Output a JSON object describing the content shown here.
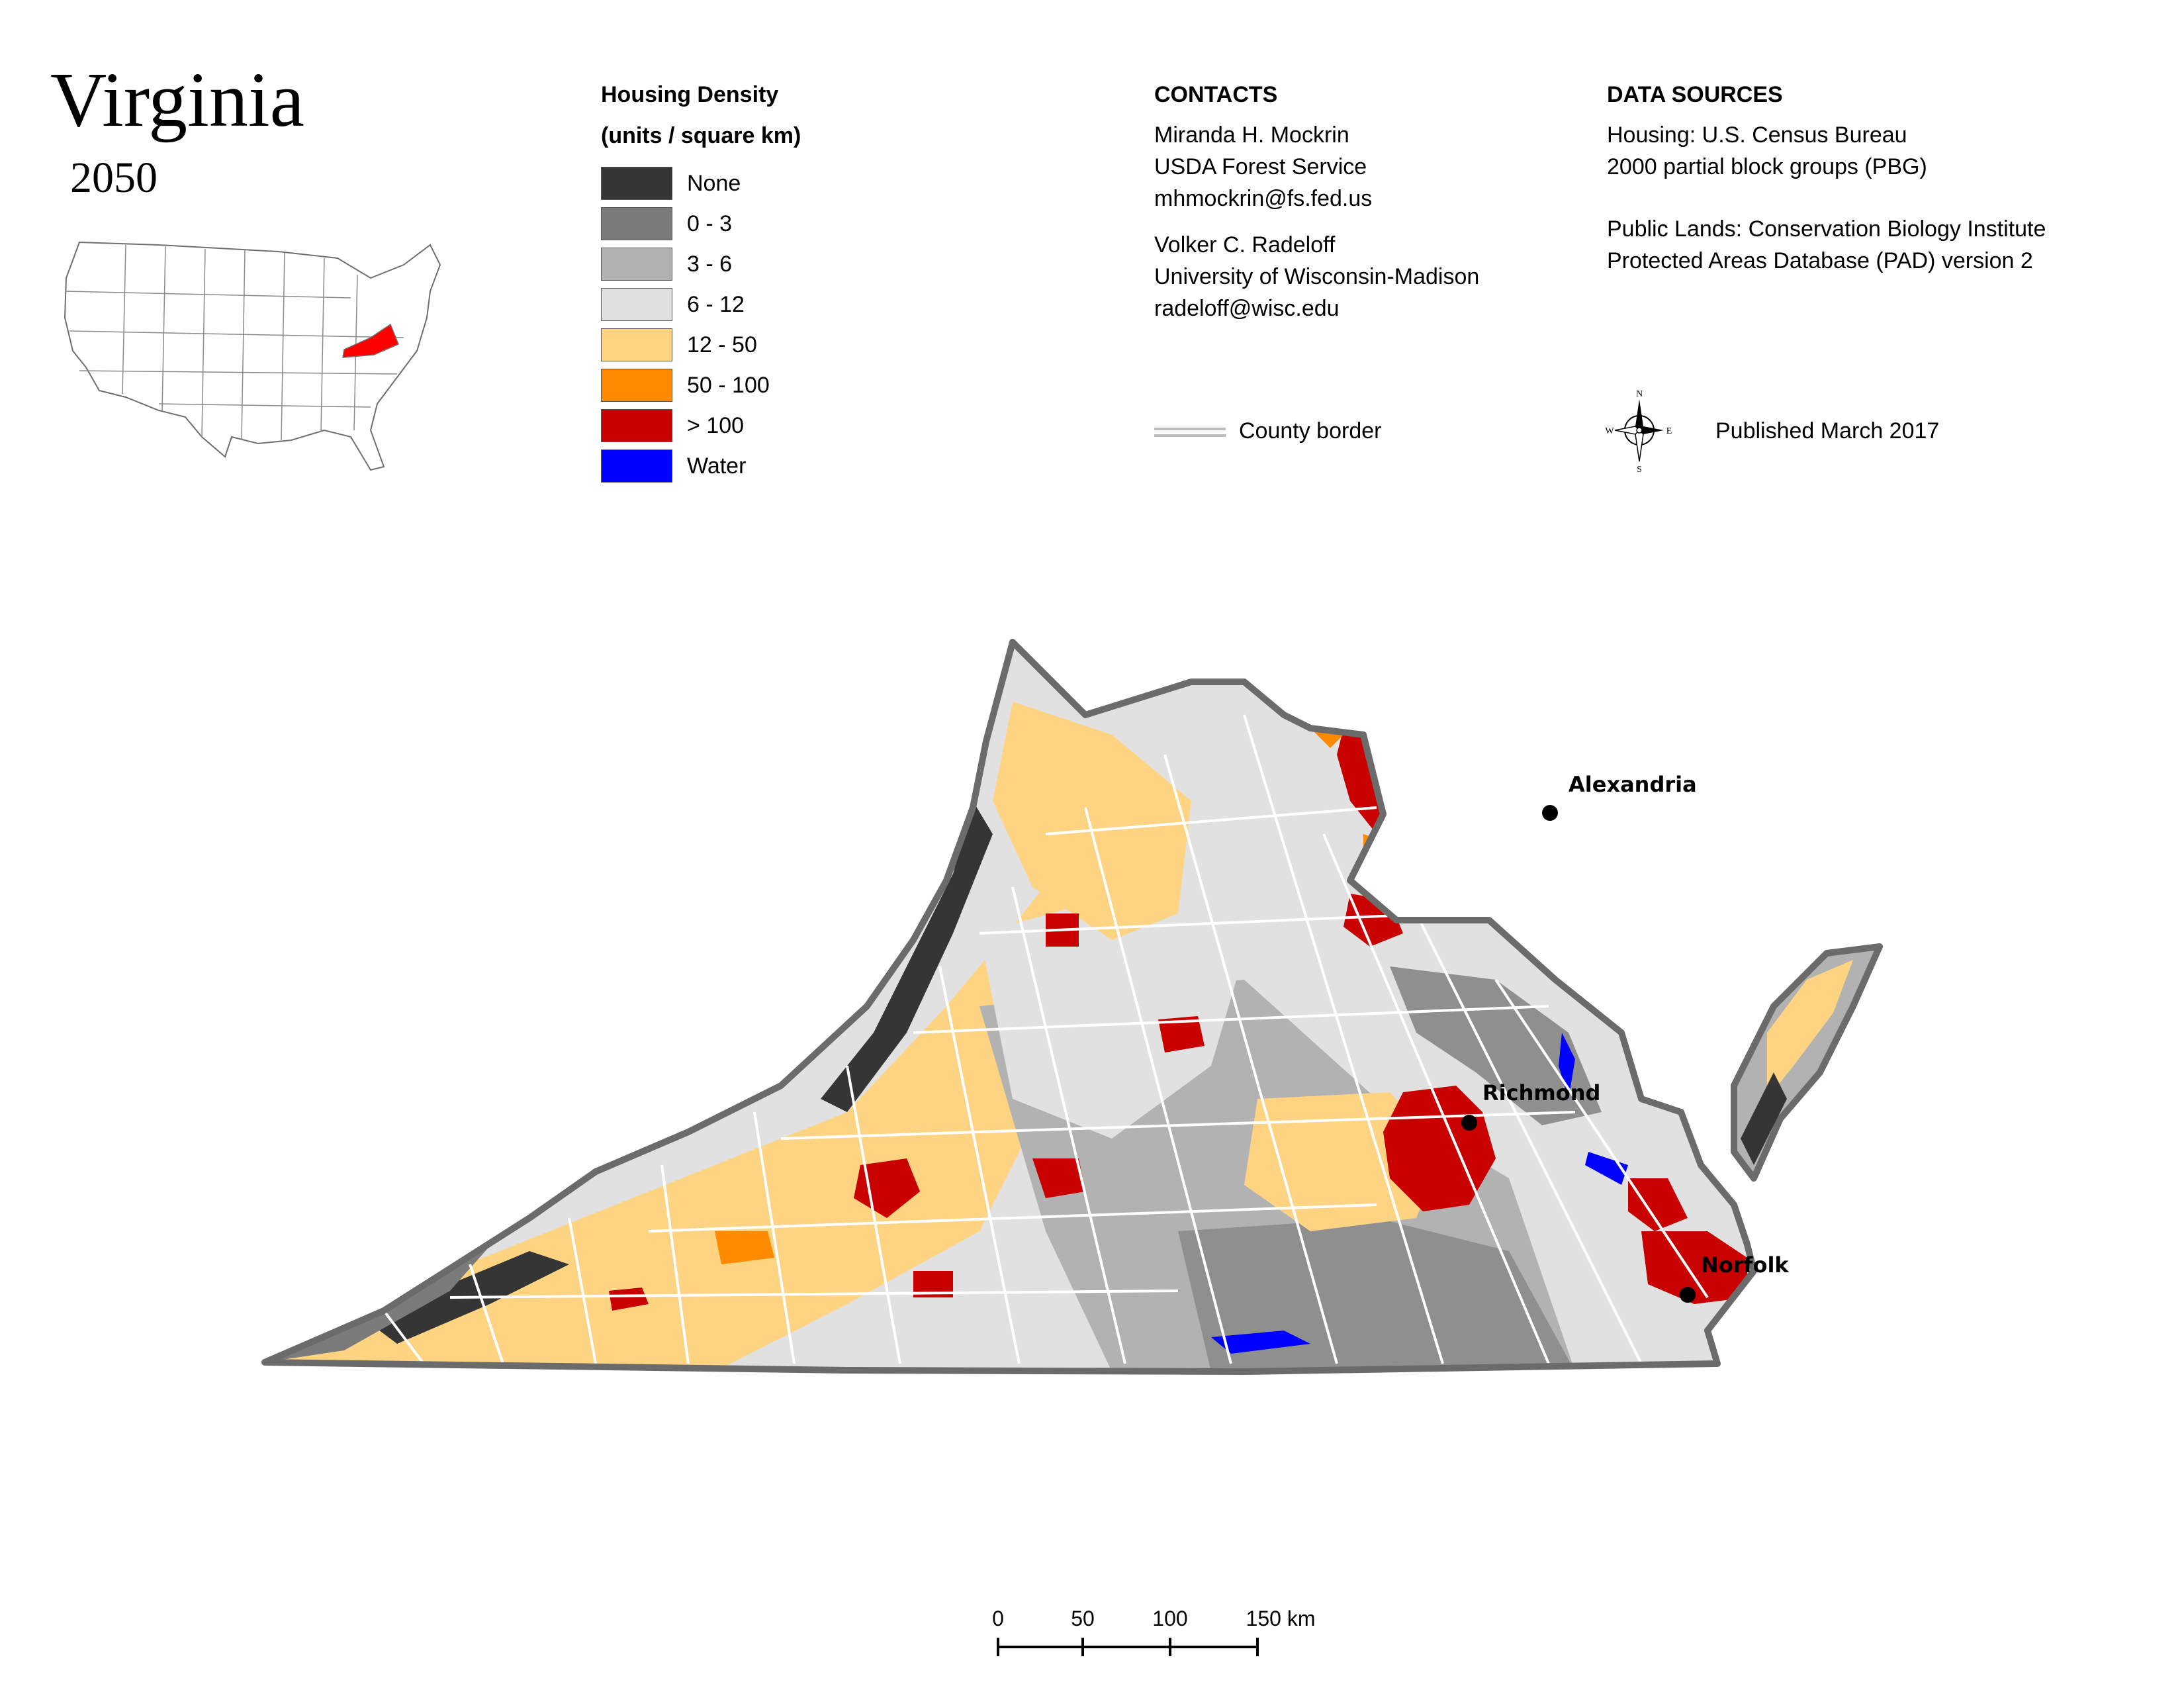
{
  "title": "Virginia",
  "subtitle": "2050",
  "legend": {
    "title_line1": "Housing Density",
    "title_line2": "(units / square km)",
    "items": [
      {
        "label": "None",
        "color": "#353535"
      },
      {
        "label": "0 - 3",
        "color": "#7b7b7b"
      },
      {
        "label": "3 - 6",
        "color": "#b2b2b2"
      },
      {
        "label": "6 - 12",
        "color": "#e1e1e1"
      },
      {
        "label": "12 - 50",
        "color": "#fed482"
      },
      {
        "label": "50 - 100",
        "color": "#ff8a00"
      },
      {
        "label": "> 100",
        "color": "#c80000"
      },
      {
        "label": "Water",
        "color": "#0000ff"
      }
    ]
  },
  "contacts": {
    "heading": "CONTACTS",
    "person1": {
      "name": "Miranda H. Mockrin",
      "org": "USDA Forest Service",
      "email": "mhmockrin@fs.fed.us"
    },
    "person2": {
      "name": "Volker C. Radeloff",
      "org": "University of Wisconsin-Madison",
      "email": "radeloff@wisc.edu"
    }
  },
  "data_sources": {
    "heading": "DATA SOURCES",
    "line1": "Housing: U.S. Census Bureau",
    "line2": "2000 partial block groups (PBG)",
    "line3": "Public Lands: Conservation Biology Institute",
    "line4": "Protected Areas Database (PAD) version 2"
  },
  "county_border_label": "County border",
  "compass": {
    "n": "N",
    "s": "S",
    "e": "E",
    "w": "W"
  },
  "published": "Published March 2017",
  "cities": {
    "alexandria": "Alexandria",
    "richmond": "Richmond",
    "norfolk": "Norfolk"
  },
  "scale": {
    "ticks": [
      "0",
      "50",
      "100",
      "150 km"
    ]
  },
  "colors": {
    "state_outline": "#6b6b6b",
    "county_lines": "#ffffff",
    "highlight_state": "#ff0000"
  }
}
